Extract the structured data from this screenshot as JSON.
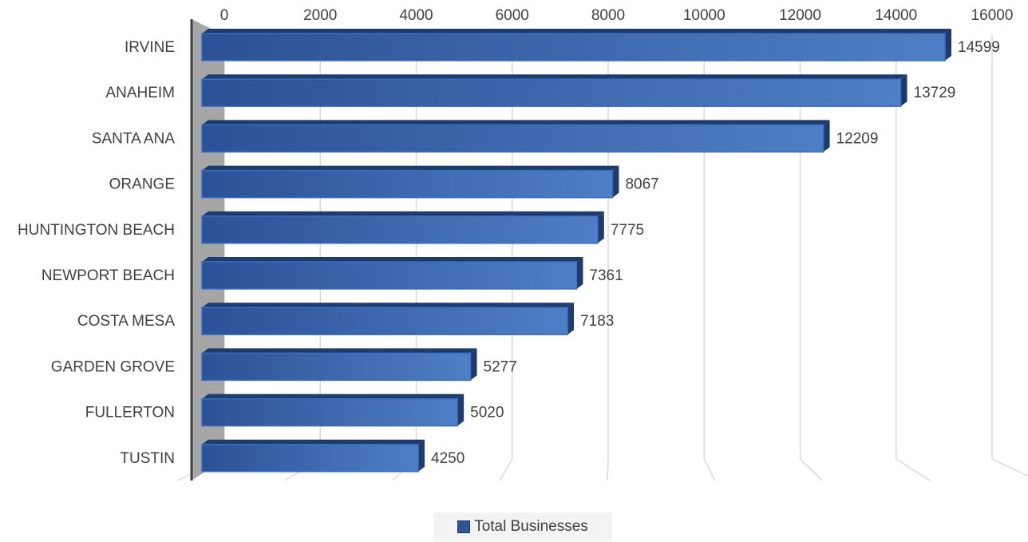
{
  "chart_data": {
    "type": "bar",
    "orientation": "horizontal",
    "categories": [
      "IRVINE",
      "ANAHEIM",
      "SANTA ANA",
      "ORANGE",
      "HUNTINGTON BEACH",
      "NEWPORT BEACH",
      "COSTA MESA",
      "GARDEN GROVE",
      "FULLERTON",
      "TUSTIN"
    ],
    "series": [
      {
        "name": "Total Businesses",
        "values": [
          14599,
          13729,
          12209,
          8067,
          7775,
          7361,
          7183,
          5277,
          5020,
          4250
        ]
      }
    ],
    "xlim": [
      0,
      16000
    ],
    "xticks": [
      "0",
      "2000",
      "4000",
      "6000",
      "8000",
      "10000",
      "12000",
      "14000",
      "16000"
    ],
    "title": "",
    "xlabel": "",
    "ylabel": "",
    "grid": true,
    "legend_position": "bottom",
    "data_labels": true,
    "style": "3d",
    "colors": {
      "bar": "#2f5597",
      "bar_light": "#4f7fc4",
      "bar_dark": "#1f3b6e",
      "gridline": "#d9d9d9",
      "text": "#404040",
      "wall": "#a6a6a6"
    }
  },
  "legend": {
    "label": "Total Businesses"
  }
}
